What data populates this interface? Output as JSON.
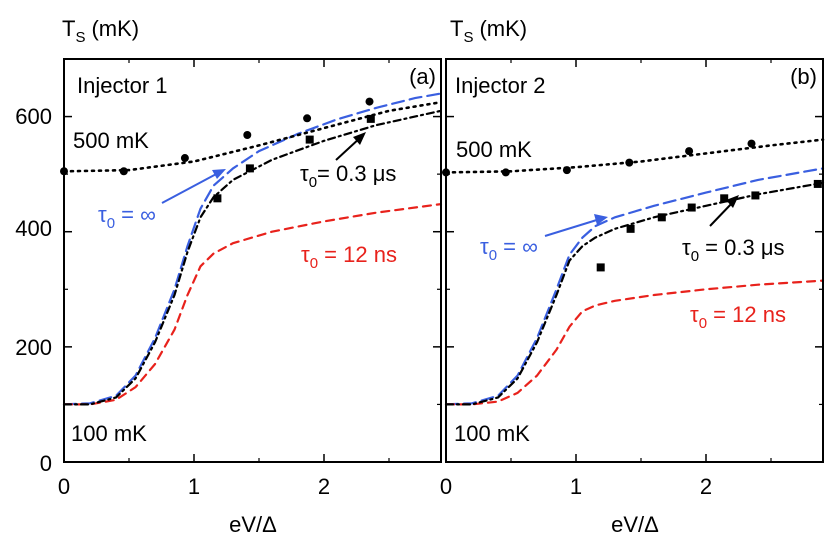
{
  "chart_data": [
    {
      "type": "line",
      "panel_label": "(a)",
      "panel_title": "Injector 1",
      "ylabel": "T",
      "ylabel_sub": "S",
      "ylabel_unit": "(mK)",
      "xlabel": "eV/Δ",
      "xlim": [
        0,
        2.9
      ],
      "ylim": [
        0,
        700
      ],
      "xticks": [
        0,
        1,
        2
      ],
      "xtick_labels": [
        "0",
        "1",
        "2"
      ],
      "yticks": [
        0,
        200,
        400,
        600
      ],
      "ytick_labels": [
        "0",
        "200",
        "400",
        "600"
      ],
      "annotations": {
        "bath_high": "500 mK",
        "bath_low": "100 mK",
        "tau_inf": "τ",
        "tau_inf_sub": "0",
        "tau_inf_val": " = ∞",
        "tau_03": "τ",
        "tau_03_sub": "0",
        "tau_03_val": "= 0.3 μs",
        "tau_12": "τ",
        "tau_12_sub": "0",
        "tau_12_val": " = 12 ns"
      },
      "series": [
        {
          "name": "τ0 = ∞",
          "style": "blue-dashed",
          "color": "#3a5fe0",
          "x": [
            0,
            0.2,
            0.4,
            0.55,
            0.7,
            0.85,
            0.95,
            1.05,
            1.15,
            1.3,
            1.5,
            1.8,
            2.1,
            2.4,
            2.7,
            2.9
          ],
          "y": [
            100,
            102,
            115,
            150,
            215,
            300,
            375,
            440,
            480,
            510,
            540,
            570,
            595,
            615,
            632,
            640
          ]
        },
        {
          "name": "τ0 = 12 ns",
          "style": "red-dashed",
          "color": "#e8221c",
          "x": [
            0,
            0.2,
            0.4,
            0.55,
            0.7,
            0.85,
            0.95,
            1.05,
            1.15,
            1.3,
            1.6,
            2.0,
            2.4,
            2.9
          ],
          "y": [
            100,
            100,
            108,
            130,
            170,
            230,
            290,
            340,
            362,
            380,
            400,
            418,
            433,
            448
          ]
        },
        {
          "name": "τ0 = 0.3 μs",
          "style": "black-dashdot",
          "color": "#000000",
          "x": [
            0,
            0.2,
            0.4,
            0.55,
            0.7,
            0.85,
            0.95,
            1.05,
            1.15,
            1.3,
            1.6,
            2.0,
            2.4,
            2.9
          ],
          "y": [
            100,
            100,
            112,
            145,
            208,
            290,
            365,
            425,
            460,
            490,
            525,
            558,
            585,
            610
          ]
        },
        {
          "name": "500 mK bath",
          "style": "black-dotted",
          "color": "#000000",
          "x": [
            0,
            0.5,
            1.0,
            1.5,
            2.0,
            2.5,
            2.9
          ],
          "y": [
            505,
            507,
            522,
            550,
            580,
            610,
            625
          ]
        }
      ],
      "points": [
        {
          "marker": "circle",
          "x": [
            0.0,
            0.46,
            0.93,
            1.41,
            1.87,
            2.35
          ],
          "y": [
            505,
            505,
            528,
            568,
            597,
            626
          ]
        },
        {
          "marker": "square",
          "x": [
            1.18,
            1.43,
            1.89,
            2.36
          ],
          "y": [
            458,
            510,
            560,
            596
          ]
        }
      ]
    },
    {
      "type": "line",
      "panel_label": "(b)",
      "panel_title": "Injector 2",
      "ylabel": "T",
      "ylabel_sub": "S",
      "ylabel_unit": "(mK)",
      "xlabel": "eV/Δ",
      "xlim": [
        0,
        2.9
      ],
      "ylim": [
        0,
        700
      ],
      "xticks": [
        0,
        1,
        2
      ],
      "xtick_labels": [
        "0",
        "1",
        "2"
      ],
      "yticks": [
        0,
        200,
        400,
        600
      ],
      "ytick_labels": [
        "",
        "",
        "",
        ""
      ],
      "annotations": {
        "bath_high": "500 mK",
        "bath_low": "100 mK",
        "tau_inf": "τ",
        "tau_inf_sub": "0",
        "tau_inf_val": " = ∞",
        "tau_03": "τ",
        "tau_03_sub": "0",
        "tau_03_val": " = 0.3 μs",
        "tau_12": "τ",
        "tau_12_sub": "0",
        "tau_12_val": " = 12 ns"
      },
      "series": [
        {
          "name": "τ0 = ∞",
          "style": "blue-dashed",
          "color": "#3a5fe0",
          "x": [
            0,
            0.2,
            0.4,
            0.55,
            0.7,
            0.85,
            0.95,
            1.05,
            1.15,
            1.3,
            1.6,
            2.0,
            2.4,
            2.9
          ],
          "y": [
            100,
            102,
            115,
            150,
            215,
            300,
            360,
            390,
            410,
            425,
            445,
            468,
            490,
            510
          ]
        },
        {
          "name": "τ0 = 12 ns",
          "style": "red-dashed",
          "color": "#e8221c",
          "x": [
            0,
            0.2,
            0.4,
            0.55,
            0.7,
            0.85,
            0.95,
            1.05,
            1.15,
            1.3,
            1.6,
            2.0,
            2.4,
            2.9
          ],
          "y": [
            100,
            100,
            105,
            120,
            150,
            195,
            235,
            262,
            272,
            280,
            290,
            300,
            308,
            315
          ]
        },
        {
          "name": "τ0 = 0.3 μs",
          "style": "black-dashdot",
          "color": "#000000",
          "x": [
            0,
            0.2,
            0.4,
            0.55,
            0.7,
            0.85,
            0.95,
            1.05,
            1.15,
            1.3,
            1.6,
            2.0,
            2.4,
            2.9
          ],
          "y": [
            100,
            100,
            112,
            145,
            208,
            290,
            350,
            375,
            390,
            405,
            425,
            445,
            465,
            485
          ]
        },
        {
          "name": "500 mK bath",
          "style": "black-dotted",
          "color": "#000000",
          "x": [
            0,
            0.5,
            1.0,
            1.5,
            2.0,
            2.5,
            2.9
          ],
          "y": [
            503,
            505,
            512,
            522,
            536,
            550,
            560
          ]
        }
      ],
      "points": [
        {
          "marker": "circle",
          "x": [
            0.0,
            0.46,
            0.93,
            1.41,
            1.87,
            2.35
          ],
          "y": [
            503,
            503,
            507,
            520,
            540,
            553
          ]
        },
        {
          "marker": "square",
          "x": [
            1.19,
            1.42,
            1.66,
            1.89,
            2.14,
            2.38,
            2.86
          ],
          "y": [
            338,
            405,
            425,
            442,
            458,
            463,
            483
          ]
        }
      ]
    }
  ]
}
